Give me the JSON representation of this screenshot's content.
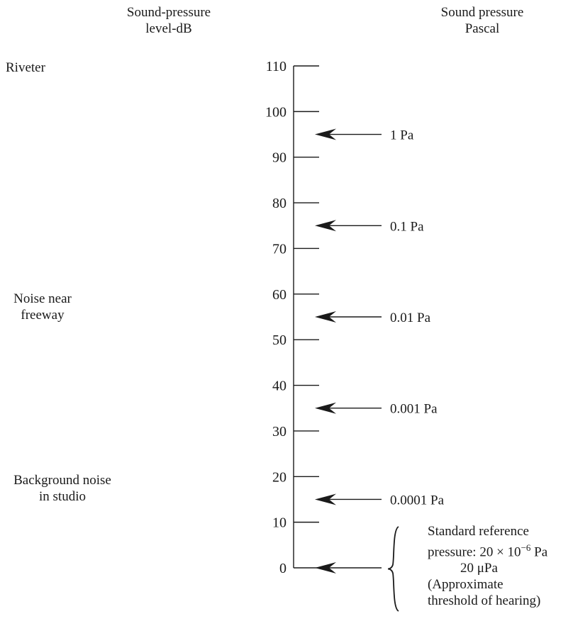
{
  "headers": {
    "left": [
      "Sound-pressure",
      "level-dB"
    ],
    "right": [
      "Sound pressure",
      "Pascal"
    ]
  },
  "scale": {
    "unit": "dB",
    "min": 0,
    "max": 110,
    "tick_step": 10,
    "tick_labels": [
      "110",
      "100",
      "90",
      "80",
      "70",
      "60",
      "50",
      "40",
      "30",
      "20",
      "10",
      "0"
    ]
  },
  "pressure_arrows": [
    {
      "db": 95,
      "label": "1 Pa"
    },
    {
      "db": 75,
      "label": "0.1 Pa"
    },
    {
      "db": 55,
      "label": "0.01 Pa"
    },
    {
      "db": 35,
      "label": "0.001 Pa"
    },
    {
      "db": 15,
      "label": "0.0001 Pa"
    },
    {
      "db": 0,
      "label": ""
    }
  ],
  "sources": {
    "riveter": "Riveter",
    "freeway": [
      "Noise near",
      "freeway"
    ],
    "studio": [
      "Background noise",
      "in studio"
    ]
  },
  "reference": {
    "line1": "Standard reference",
    "line2_prefix": "pressure: 20 × 10",
    "line2_exp": "−6",
    "line2_suffix": " Pa",
    "line3": "20 μPa",
    "line4": "(Approximate",
    "line5": "threshold of hearing)"
  },
  "colors": {
    "ink": "#1a1a1a",
    "background": "#ffffff"
  }
}
